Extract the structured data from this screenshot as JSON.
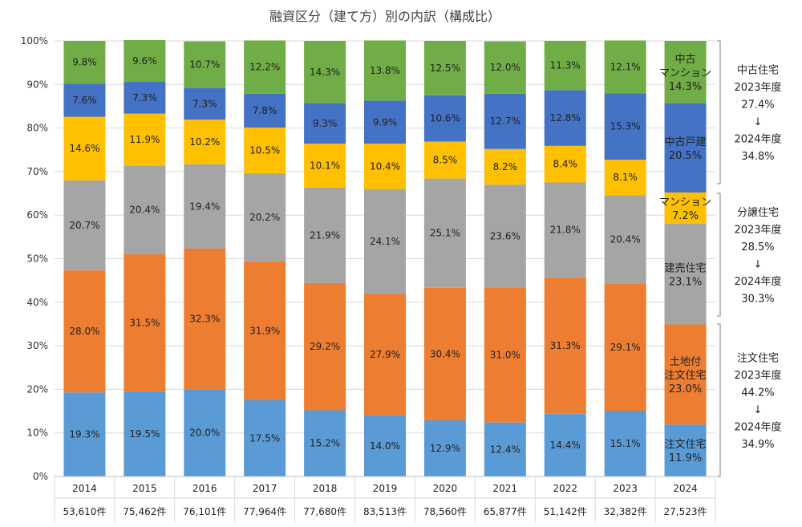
{
  "chart_data": {
    "type": "bar",
    "stacked": true,
    "title": "融資区分（建て方）別の内訳（構成比）",
    "categories": [
      "2014",
      "2015",
      "2016",
      "2017",
      "2018",
      "2019",
      "2020",
      "2021",
      "2022",
      "2023",
      "2024"
    ],
    "counts": [
      "53,610件",
      "75,462件",
      "76,101件",
      "77,964件",
      "77,680件",
      "83,513件",
      "78,560件",
      "65,877件",
      "51,142件",
      "32,382件",
      "27,523件"
    ],
    "ylim": [
      0,
      100
    ],
    "y_ticks": [
      "0%",
      "10%",
      "20%",
      "30%",
      "40%",
      "50%",
      "60%",
      "70%",
      "80%",
      "90%",
      "100%"
    ],
    "grid": true,
    "series": [
      {
        "color": "#5b9bd5",
        "values": [
          19.3,
          19.5,
          20.0,
          17.5,
          15.2,
          14.0,
          12.9,
          12.4,
          14.4,
          15.1,
          11.9
        ],
        "labels": [
          "19.3%",
          "19.5%",
          "20.0%",
          "17.5%",
          "15.2%",
          "14.0%",
          "12.9%",
          "12.4%",
          "14.4%",
          "15.1%",
          "11.9%"
        ]
      },
      {
        "color": "#ed7d31",
        "values": [
          28.0,
          31.5,
          32.3,
          31.9,
          29.2,
          27.9,
          30.4,
          31.0,
          31.3,
          29.1,
          23.0
        ],
        "labels": [
          "28.0%",
          "31.5%",
          "32.3%",
          "31.9%",
          "29.2%",
          "27.9%",
          "30.4%",
          "31.0%",
          "31.3%",
          "29.1%",
          "23.0%"
        ]
      },
      {
        "color": "#a5a5a5",
        "values": [
          20.7,
          20.4,
          19.4,
          20.2,
          21.9,
          24.1,
          25.1,
          23.6,
          21.8,
          20.4,
          23.1
        ],
        "labels": [
          "20.7%",
          "20.4%",
          "19.4%",
          "20.2%",
          "21.9%",
          "24.1%",
          "25.1%",
          "23.6%",
          "21.8%",
          "20.4%",
          "23.1%"
        ]
      },
      {
        "color": "#ffc000",
        "values": [
          14.6,
          11.9,
          10.2,
          10.5,
          10.1,
          10.4,
          8.5,
          8.2,
          8.4,
          8.1,
          7.2
        ],
        "labels": [
          "14.6%",
          "11.9%",
          "10.2%",
          "10.5%",
          "10.1%",
          "10.4%",
          "8.5%",
          "8.2%",
          "8.4%",
          "8.1%",
          "7.2%"
        ]
      },
      {
        "color": "#4472c4",
        "values": [
          7.6,
          7.3,
          7.3,
          7.8,
          9.3,
          9.9,
          10.6,
          12.7,
          12.8,
          15.3,
          20.5
        ],
        "labels": [
          "7.6%",
          "7.3%",
          "7.3%",
          "7.8%",
          "9.3%",
          "9.9%",
          "10.6%",
          "12.7%",
          "12.8%",
          "15.3%",
          "20.5%"
        ]
      },
      {
        "color": "#70ad47",
        "values": [
          9.8,
          9.6,
          10.7,
          12.2,
          14.3,
          13.8,
          12.5,
          12.0,
          11.3,
          12.1,
          14.3
        ],
        "labels": [
          "9.8%",
          "9.6%",
          "10.7%",
          "12.2%",
          "14.3%",
          "13.8%",
          "12.5%",
          "12.0%",
          "11.3%",
          "12.1%",
          "14.3%"
        ]
      }
    ],
    "last_bar_labels": [
      [
        "注文住宅",
        "11.9%"
      ],
      [
        "土地付",
        "注文住宅",
        "23.0%"
      ],
      [
        "建売住宅",
        "23.1%"
      ],
      [
        "マンション",
        "7.2%"
      ],
      [
        "中古戸建",
        "20.5%"
      ],
      [
        "中古",
        "マンション",
        "14.3%"
      ]
    ],
    "side_annotations": [
      [
        "中古住宅",
        "2023年度",
        "27.4%",
        "↓",
        "2024年度",
        "34.8%"
      ],
      [
        "分譲住宅",
        "2023年度",
        "28.5%",
        "↓",
        "2024年度",
        "30.3%"
      ],
      [
        "注文住宅",
        "2023年度",
        "44.2%",
        "↓",
        "2024年度",
        "34.9%"
      ]
    ]
  }
}
